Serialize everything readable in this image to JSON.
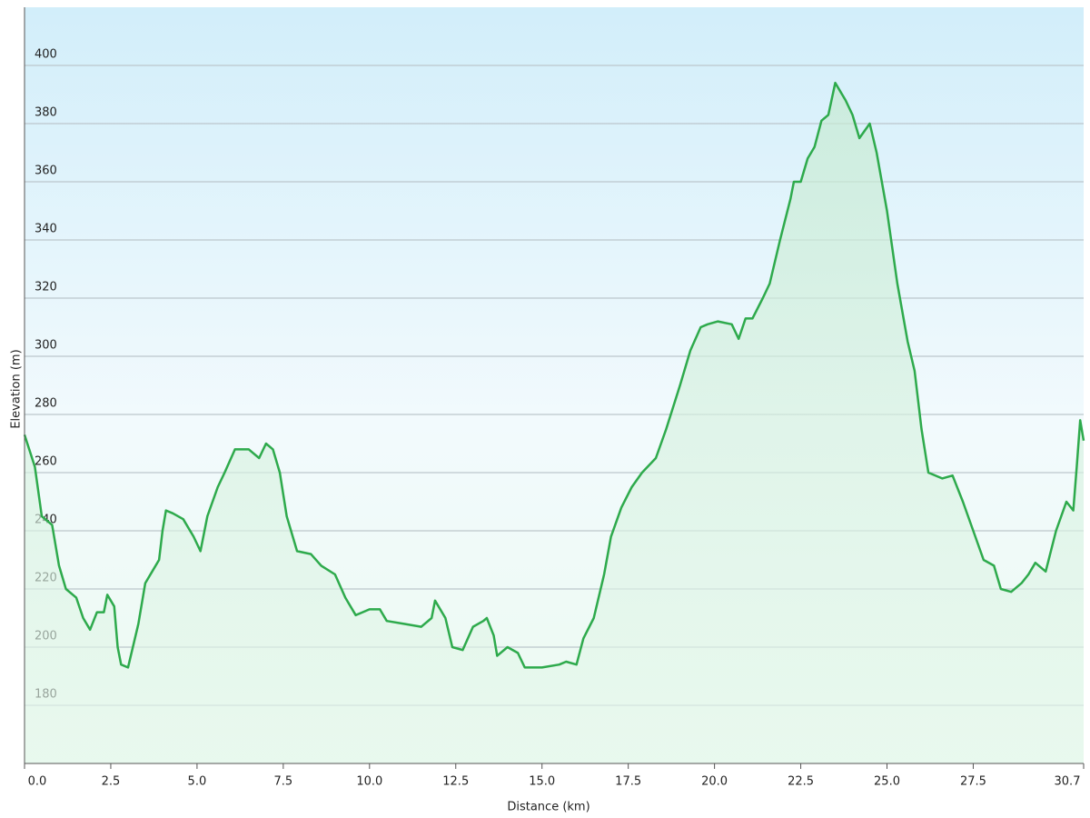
{
  "chart_data": {
    "type": "area",
    "xlabel": "Distance (km)",
    "ylabel": "Elevation (m)",
    "color": "#2eaa4c",
    "x": [
      0,
      0.3,
      0.5,
      0.8,
      1.0,
      1.2,
      1.5,
      1.7,
      1.9,
      2.1,
      2.3,
      2.4,
      2.6,
      2.7,
      2.8,
      3.0,
      3.1,
      3.3,
      3.5,
      3.7,
      3.9,
      4.0,
      4.1,
      4.3,
      4.6,
      4.9,
      5.1,
      5.3,
      5.6,
      5.8,
      6.1,
      6.5,
      6.8,
      7.0,
      7.2,
      7.4,
      7.6,
      7.9,
      8.3,
      8.6,
      9.0,
      9.3,
      9.6,
      9.8,
      10.0,
      10.3,
      10.5,
      11.0,
      11.5,
      11.8,
      11.9,
      12.2,
      12.4,
      12.7,
      13.0,
      13.3,
      13.4,
      13.6,
      13.7,
      14.0,
      14.3,
      14.5,
      15.0,
      15.5,
      15.7,
      16.0,
      16.2,
      16.5,
      16.8,
      17.0,
      17.3,
      17.6,
      17.9,
      18.3,
      18.6,
      19.0,
      19.3,
      19.6,
      19.8,
      20.1,
      20.5,
      20.7,
      20.9,
      21.1,
      21.4,
      21.6,
      21.9,
      22.2,
      22.3,
      22.5,
      22.7,
      22.9,
      23.1,
      23.3,
      23.5,
      23.8,
      24.0,
      24.2,
      24.5,
      24.7,
      25.0,
      25.3,
      25.6,
      25.8,
      26.0,
      26.2,
      26.6,
      26.9,
      27.2,
      27.5,
      27.8,
      28.1,
      28.3,
      28.6,
      28.9,
      29.1,
      29.3,
      29.6,
      29.9,
      30.2,
      30.4,
      30.5,
      30.6,
      30.7
    ],
    "values": [
      273,
      262,
      245,
      242,
      228,
      220,
      217,
      210,
      206,
      212,
      212,
      218,
      214,
      200,
      194,
      193,
      198,
      208,
      222,
      226,
      230,
      240,
      247,
      246,
      244,
      238,
      233,
      245,
      255,
      260,
      268,
      268,
      265,
      270,
      268,
      260,
      245,
      233,
      232,
      228,
      225,
      217,
      211,
      212,
      213,
      213,
      209,
      208,
      207,
      210,
      216,
      210,
      200,
      199,
      207,
      209,
      210,
      204,
      197,
      200,
      198,
      193,
      193,
      194,
      195,
      194,
      203,
      210,
      225,
      238,
      248,
      255,
      260,
      265,
      275,
      290,
      302,
      310,
      311,
      312,
      311,
      306,
      313,
      313,
      320,
      325,
      340,
      354,
      360,
      360,
      368,
      372,
      381,
      383,
      394,
      388,
      383,
      375,
      380,
      370,
      350,
      325,
      305,
      295,
      275,
      260,
      258,
      259,
      250,
      240,
      230,
      228,
      220,
      219,
      222,
      225,
      229,
      226,
      240,
      250,
      247,
      262,
      278,
      271
    ],
    "xlim": [
      0,
      30.7
    ],
    "ylim": [
      160,
      420
    ],
    "xticks": [
      {
        "value": 0,
        "label": "0.0"
      },
      2.5,
      {
        "value": 5,
        "label": "5.0"
      },
      7.5,
      {
        "value": 10,
        "label": "10.0"
      },
      12.5,
      {
        "value": 15,
        "label": "15.0"
      },
      17.5,
      {
        "value": 20,
        "label": "20.0"
      },
      22.5,
      {
        "value": 25,
        "label": "25.0"
      },
      27.5,
      30.7
    ],
    "yticks": [
      180,
      200,
      220,
      240,
      260,
      280,
      300,
      320,
      340,
      360,
      380,
      400
    ],
    "grid": true
  }
}
